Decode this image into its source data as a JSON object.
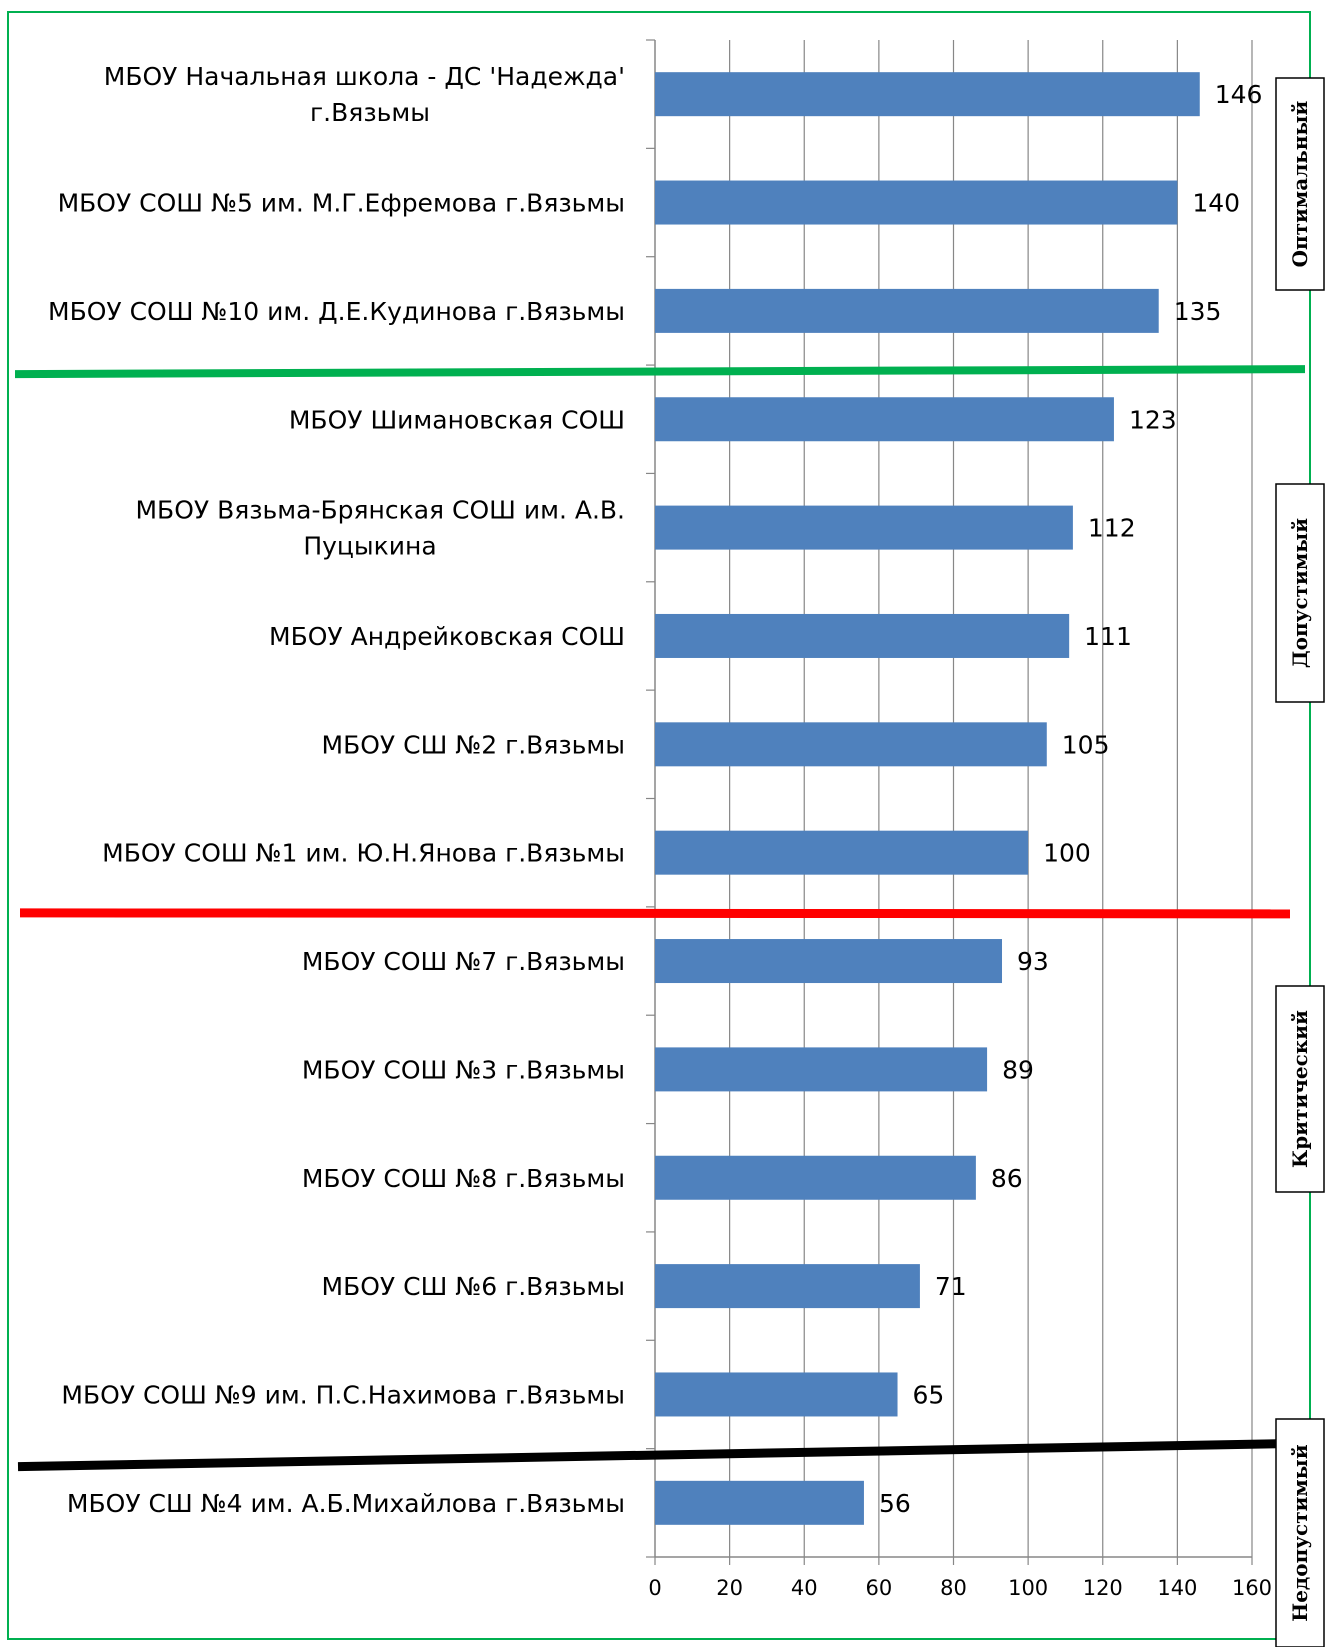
{
  "chart_data": {
    "type": "bar",
    "orientation": "horizontal",
    "categories": [
      "МБОУ Начальная школа - ДС 'Надежда' г.Вязьмы",
      "МБОУ СОШ №5 им. М.Г.Ефремова г.Вязьмы",
      "МБОУ СОШ №10 им. Д.Е.Кудинова г.Вязьмы",
      "МБОУ Шимановская СОШ",
      "МБОУ Вязьма-Брянская СОШ им. А.В. Пуцыкина",
      "МБОУ Андрейковская СОШ",
      "МБОУ СШ №2 г.Вязьмы",
      "МБОУ СОШ №1 им. Ю.Н.Янова г.Вязьмы",
      "МБОУ СОШ №7 г.Вязьмы",
      "МБОУ СОШ №3 г.Вязьмы",
      "МБОУ СОШ №8 г.Вязьмы",
      "МБОУ СШ №6 г.Вязьмы",
      "МБОУ СОШ №9 им. П.С.Нахимова г.Вязьмы",
      "МБОУ СШ №4 им. А.Б.Михайлова г.Вязьмы"
    ],
    "category_lines": [
      [
        "МБОУ Начальная школа - ДС 'Надежда'",
        "г.Вязьмы"
      ],
      [
        "МБОУ СОШ №5 им. М.Г.Ефремова г.Вязьмы"
      ],
      [
        "МБОУ СОШ №10 им. Д.Е.Кудинова г.Вязьмы"
      ],
      [
        "МБОУ Шимановская СОШ"
      ],
      [
        "МБОУ Вязьма-Брянская СОШ им. А.В.",
        "Пуцыкина"
      ],
      [
        "МБОУ Андрейковская СОШ"
      ],
      [
        "МБОУ СШ №2 г.Вязьмы"
      ],
      [
        "МБОУ СОШ №1 им. Ю.Н.Янова г.Вязьмы"
      ],
      [
        "МБОУ СОШ №7 г.Вязьмы"
      ],
      [
        "МБОУ СОШ №3 г.Вязьмы"
      ],
      [
        "МБОУ СОШ №8 г.Вязьмы"
      ],
      [
        "МБОУ СШ №6 г.Вязьмы"
      ],
      [
        "МБОУ СОШ №9 им. П.С.Нахимова г.Вязьмы"
      ],
      [
        "МБОУ СШ №4 им. А.Б.Михайлова г.Вязьмы"
      ]
    ],
    "values": [
      146,
      140,
      135,
      123,
      112,
      111,
      105,
      100,
      93,
      89,
      86,
      71,
      65,
      56
    ],
    "xlim": [
      0,
      160
    ],
    "xticks": [
      0,
      20,
      40,
      60,
      80,
      100,
      120,
      140,
      160
    ],
    "grid": "vertical",
    "bar_color": "#4f81bd",
    "zones": [
      {
        "label": "Оптимальный",
        "rows": [
          0,
          2
        ]
      },
      {
        "label": "Допустимый",
        "rows": [
          3,
          7
        ]
      },
      {
        "label": "Критический",
        "rows": [
          8,
          12
        ]
      },
      {
        "label": "Недопустимый",
        "rows": [
          13,
          13
        ]
      }
    ],
    "separators": [
      {
        "after_row": 2,
        "color": "#00b050"
      },
      {
        "after_row": 7,
        "color": "#ff0000"
      },
      {
        "after_row": 12,
        "color": "#000000"
      }
    ],
    "frame_color": "#00b050"
  }
}
